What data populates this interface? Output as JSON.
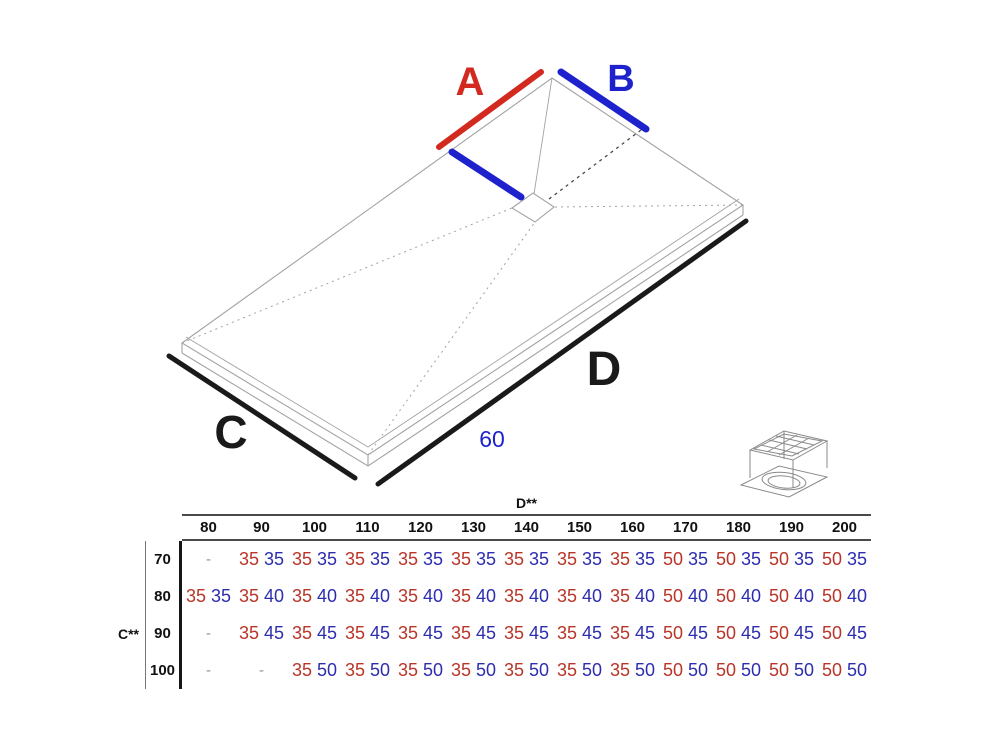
{
  "diagram": {
    "label_a": "A",
    "label_b": "B",
    "label_c": "C",
    "label_d": "D",
    "drain_offset_label": "60",
    "colors": {
      "red": "#d32a1f",
      "blue": "#1e22cc",
      "black": "#1a1a1a",
      "line": "#a3a3a3"
    }
  },
  "table": {
    "column_axis_label": "D**",
    "row_axis_label": "C**",
    "empty_cell": "-",
    "value_colors": {
      "red": "#b93528",
      "blue": "#2d2daf"
    },
    "column_headers": [
      "80",
      "90",
      "100",
      "110",
      "120",
      "130",
      "140",
      "150",
      "160",
      "170",
      "180",
      "190",
      "200"
    ],
    "rows": [
      {
        "label": "70",
        "cells": [
          null,
          [
            "35",
            "35"
          ],
          [
            "35",
            "35"
          ],
          [
            "35",
            "35"
          ],
          [
            "35",
            "35"
          ],
          [
            "35",
            "35"
          ],
          [
            "35",
            "35"
          ],
          [
            "35",
            "35"
          ],
          [
            "35",
            "35"
          ],
          [
            "50",
            "35"
          ],
          [
            "50",
            "35"
          ],
          [
            "50",
            "35"
          ],
          [
            "50",
            "35"
          ]
        ]
      },
      {
        "label": "80",
        "cells": [
          [
            "35",
            "35"
          ],
          [
            "35",
            "40"
          ],
          [
            "35",
            "40"
          ],
          [
            "35",
            "40"
          ],
          [
            "35",
            "40"
          ],
          [
            "35",
            "40"
          ],
          [
            "35",
            "40"
          ],
          [
            "35",
            "40"
          ],
          [
            "35",
            "40"
          ],
          [
            "50",
            "40"
          ],
          [
            "50",
            "40"
          ],
          [
            "50",
            "40"
          ],
          [
            "50",
            "40"
          ]
        ]
      },
      {
        "label": "90",
        "cells": [
          null,
          [
            "35",
            "45"
          ],
          [
            "35",
            "45"
          ],
          [
            "35",
            "45"
          ],
          [
            "35",
            "45"
          ],
          [
            "35",
            "45"
          ],
          [
            "35",
            "45"
          ],
          [
            "35",
            "45"
          ],
          [
            "35",
            "45"
          ],
          [
            "50",
            "45"
          ],
          [
            "50",
            "45"
          ],
          [
            "50",
            "45"
          ],
          [
            "50",
            "45"
          ]
        ]
      },
      {
        "label": "100",
        "cells": [
          null,
          null,
          [
            "35",
            "50"
          ],
          [
            "35",
            "50"
          ],
          [
            "35",
            "50"
          ],
          [
            "35",
            "50"
          ],
          [
            "35",
            "50"
          ],
          [
            "35",
            "50"
          ],
          [
            "35",
            "50"
          ],
          [
            "50",
            "50"
          ],
          [
            "50",
            "50"
          ],
          [
            "50",
            "50"
          ],
          [
            "50",
            "50"
          ]
        ]
      }
    ]
  }
}
